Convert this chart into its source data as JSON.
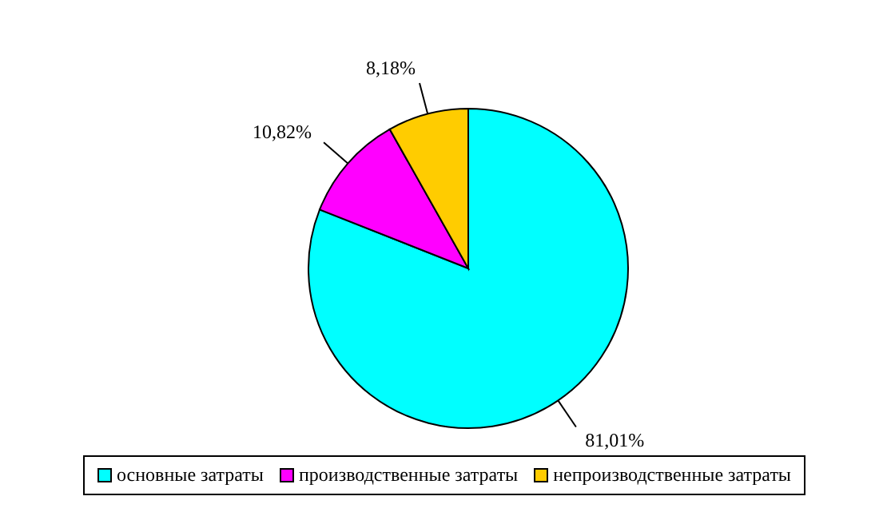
{
  "chart_data": {
    "type": "pie",
    "categories": [
      "основные затраты",
      "производственные затраты",
      "непроизводственные затраты"
    ],
    "values": [
      81.01,
      10.82,
      8.18
    ],
    "value_labels": [
      "81,01%",
      "10,82%",
      "8,18%"
    ],
    "colors": [
      "#00ffff",
      "#ff00ff",
      "#ffcc00"
    ],
    "legend": "bottom"
  }
}
